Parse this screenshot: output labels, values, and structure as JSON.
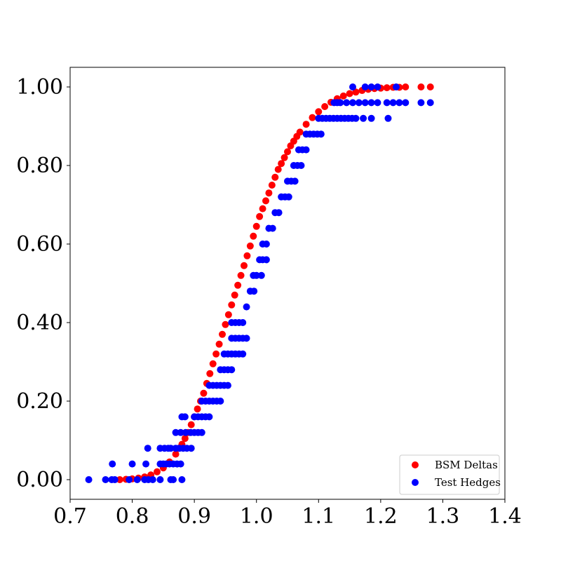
{
  "chart_data": {
    "type": "scatter",
    "title": "",
    "xlabel": "",
    "ylabel": "",
    "xlim": [
      0.7,
      1.4
    ],
    "ylim": [
      -0.05,
      1.05
    ],
    "xticks": [
      0.7,
      0.8,
      0.9,
      1.0,
      1.1,
      1.2,
      1.3,
      1.4
    ],
    "xtick_labels": [
      "0.7",
      "0.8",
      "0.9",
      "1.0",
      "1.1",
      "1.2",
      "1.3",
      "1.4"
    ],
    "yticks": [
      0.0,
      0.2,
      0.4,
      0.6,
      0.8,
      1.0
    ],
    "ytick_labels": [
      "0.00",
      "0.20",
      "0.40",
      "0.60",
      "0.80",
      "1.00"
    ],
    "grid": false,
    "legend_position": "lower-right",
    "series": [
      {
        "name": "BSM Deltas",
        "color": "#ff0000",
        "points": [
          [
            0.78,
            0.0
          ],
          [
            0.79,
            0.001
          ],
          [
            0.8,
            0.002
          ],
          [
            0.81,
            0.004
          ],
          [
            0.82,
            0.007
          ],
          [
            0.83,
            0.012
          ],
          [
            0.84,
            0.02
          ],
          [
            0.85,
            0.03
          ],
          [
            0.86,
            0.045
          ],
          [
            0.87,
            0.065
          ],
          [
            0.875,
            0.08
          ],
          [
            0.88,
            0.09
          ],
          [
            0.885,
            0.105
          ],
          [
            0.89,
            0.12
          ],
          [
            0.895,
            0.14
          ],
          [
            0.9,
            0.16
          ],
          [
            0.905,
            0.18
          ],
          [
            0.91,
            0.2
          ],
          [
            0.915,
            0.22
          ],
          [
            0.92,
            0.245
          ],
          [
            0.925,
            0.27
          ],
          [
            0.93,
            0.295
          ],
          [
            0.935,
            0.32
          ],
          [
            0.94,
            0.345
          ],
          [
            0.945,
            0.37
          ],
          [
            0.95,
            0.395
          ],
          [
            0.955,
            0.42
          ],
          [
            0.96,
            0.445
          ],
          [
            0.965,
            0.47
          ],
          [
            0.97,
            0.495
          ],
          [
            0.975,
            0.52
          ],
          [
            0.98,
            0.545
          ],
          [
            0.985,
            0.57
          ],
          [
            0.99,
            0.595
          ],
          [
            0.995,
            0.62
          ],
          [
            1.0,
            0.645
          ],
          [
            1.005,
            0.67
          ],
          [
            1.01,
            0.69
          ],
          [
            1.015,
            0.71
          ],
          [
            1.02,
            0.73
          ],
          [
            1.025,
            0.75
          ],
          [
            1.03,
            0.77
          ],
          [
            1.035,
            0.79
          ],
          [
            1.04,
            0.805
          ],
          [
            1.045,
            0.82
          ],
          [
            1.05,
            0.835
          ],
          [
            1.055,
            0.85
          ],
          [
            1.06,
            0.862
          ],
          [
            1.065,
            0.874
          ],
          [
            1.07,
            0.885
          ],
          [
            1.08,
            0.905
          ],
          [
            1.09,
            0.922
          ],
          [
            1.1,
            0.937
          ],
          [
            1.11,
            0.95
          ],
          [
            1.12,
            0.961
          ],
          [
            1.13,
            0.97
          ],
          [
            1.14,
            0.977
          ],
          [
            1.15,
            0.983
          ],
          [
            1.16,
            0.987
          ],
          [
            1.17,
            0.991
          ],
          [
            1.18,
            0.994
          ],
          [
            1.19,
            0.996
          ],
          [
            1.2,
            0.997
          ],
          [
            1.21,
            0.998
          ],
          [
            1.22,
            0.999
          ],
          [
            1.23,
            0.999
          ],
          [
            1.24,
            1.0
          ],
          [
            1.265,
            1.0
          ],
          [
            1.28,
            1.0
          ]
        ]
      },
      {
        "name": "Test Hedges",
        "color": "#0000ff",
        "points": [
          [
            0.73,
            0.0
          ],
          [
            0.757,
            0.0
          ],
          [
            0.767,
            0.0
          ],
          [
            0.772,
            0.0
          ],
          [
            0.795,
            0.0
          ],
          [
            0.808,
            0.0
          ],
          [
            0.82,
            0.0
          ],
          [
            0.826,
            0.0
          ],
          [
            0.833,
            0.0
          ],
          [
            0.845,
            0.0
          ],
          [
            0.862,
            0.0
          ],
          [
            0.866,
            0.0
          ],
          [
            0.88,
            0.0
          ],
          [
            0.768,
            0.04
          ],
          [
            0.8,
            0.04
          ],
          [
            0.822,
            0.04
          ],
          [
            0.845,
            0.04
          ],
          [
            0.85,
            0.04
          ],
          [
            0.855,
            0.04
          ],
          [
            0.86,
            0.04
          ],
          [
            0.866,
            0.04
          ],
          [
            0.872,
            0.04
          ],
          [
            0.878,
            0.04
          ],
          [
            0.825,
            0.08
          ],
          [
            0.845,
            0.08
          ],
          [
            0.852,
            0.08
          ],
          [
            0.858,
            0.08
          ],
          [
            0.862,
            0.08
          ],
          [
            0.87,
            0.08
          ],
          [
            0.876,
            0.08
          ],
          [
            0.882,
            0.08
          ],
          [
            0.888,
            0.08
          ],
          [
            0.895,
            0.08
          ],
          [
            0.87,
            0.12
          ],
          [
            0.878,
            0.12
          ],
          [
            0.886,
            0.12
          ],
          [
            0.894,
            0.12
          ],
          [
            0.9,
            0.12
          ],
          [
            0.906,
            0.12
          ],
          [
            0.912,
            0.12
          ],
          [
            0.88,
            0.16
          ],
          [
            0.885,
            0.16
          ],
          [
            0.9,
            0.16
          ],
          [
            0.906,
            0.16
          ],
          [
            0.912,
            0.16
          ],
          [
            0.918,
            0.16
          ],
          [
            0.924,
            0.16
          ],
          [
            0.912,
            0.2
          ],
          [
            0.918,
            0.2
          ],
          [
            0.924,
            0.2
          ],
          [
            0.93,
            0.2
          ],
          [
            0.936,
            0.2
          ],
          [
            0.942,
            0.2
          ],
          [
            0.924,
            0.24
          ],
          [
            0.93,
            0.24
          ],
          [
            0.936,
            0.24
          ],
          [
            0.942,
            0.24
          ],
          [
            0.948,
            0.24
          ],
          [
            0.954,
            0.24
          ],
          [
            0.942,
            0.28
          ],
          [
            0.948,
            0.28
          ],
          [
            0.954,
            0.28
          ],
          [
            0.96,
            0.28
          ],
          [
            0.948,
            0.32
          ],
          [
            0.954,
            0.32
          ],
          [
            0.96,
            0.32
          ],
          [
            0.966,
            0.32
          ],
          [
            0.972,
            0.32
          ],
          [
            0.978,
            0.32
          ],
          [
            0.96,
            0.36
          ],
          [
            0.966,
            0.36
          ],
          [
            0.972,
            0.36
          ],
          [
            0.978,
            0.36
          ],
          [
            0.984,
            0.36
          ],
          [
            0.96,
            0.4
          ],
          [
            0.966,
            0.4
          ],
          [
            0.972,
            0.4
          ],
          [
            0.978,
            0.4
          ],
          [
            0.984,
            0.44
          ],
          [
            0.99,
            0.48
          ],
          [
            0.996,
            0.48
          ],
          [
            0.995,
            0.52
          ],
          [
            1.0,
            0.52
          ],
          [
            1.008,
            0.52
          ],
          [
            1.005,
            0.56
          ],
          [
            1.01,
            0.56
          ],
          [
            1.016,
            0.56
          ],
          [
            1.01,
            0.6
          ],
          [
            1.016,
            0.6
          ],
          [
            1.02,
            0.64
          ],
          [
            1.026,
            0.64
          ],
          [
            1.03,
            0.68
          ],
          [
            1.036,
            0.68
          ],
          [
            1.04,
            0.72
          ],
          [
            1.046,
            0.72
          ],
          [
            1.052,
            0.72
          ],
          [
            1.05,
            0.76
          ],
          [
            1.056,
            0.76
          ],
          [
            1.062,
            0.76
          ],
          [
            1.06,
            0.8
          ],
          [
            1.066,
            0.8
          ],
          [
            1.072,
            0.8
          ],
          [
            1.068,
            0.84
          ],
          [
            1.074,
            0.84
          ],
          [
            1.08,
            0.84
          ],
          [
            1.08,
            0.88
          ],
          [
            1.086,
            0.88
          ],
          [
            1.092,
            0.88
          ],
          [
            1.098,
            0.88
          ],
          [
            1.104,
            0.88
          ],
          [
            1.1,
            0.92
          ],
          [
            1.106,
            0.92
          ],
          [
            1.112,
            0.92
          ],
          [
            1.118,
            0.92
          ],
          [
            1.124,
            0.92
          ],
          [
            1.13,
            0.92
          ],
          [
            1.136,
            0.92
          ],
          [
            1.142,
            0.92
          ],
          [
            1.148,
            0.92
          ],
          [
            1.154,
            0.92
          ],
          [
            1.16,
            0.92
          ],
          [
            1.172,
            0.92
          ],
          [
            1.185,
            0.92
          ],
          [
            1.212,
            0.92
          ],
          [
            1.125,
            0.96
          ],
          [
            1.135,
            0.96
          ],
          [
            1.145,
            0.96
          ],
          [
            1.155,
            0.96
          ],
          [
            1.165,
            0.96
          ],
          [
            1.175,
            0.96
          ],
          [
            1.185,
            0.96
          ],
          [
            1.195,
            0.96
          ],
          [
            1.21,
            0.96
          ],
          [
            1.22,
            0.96
          ],
          [
            1.23,
            0.96
          ],
          [
            1.24,
            0.96
          ],
          [
            1.265,
            0.96
          ],
          [
            1.28,
            0.96
          ],
          [
            1.13,
            0.96
          ],
          [
            1.155,
            1.0
          ],
          [
            1.175,
            1.0
          ],
          [
            1.185,
            1.0
          ],
          [
            1.195,
            1.0
          ],
          [
            1.225,
            1.0
          ]
        ]
      }
    ]
  }
}
